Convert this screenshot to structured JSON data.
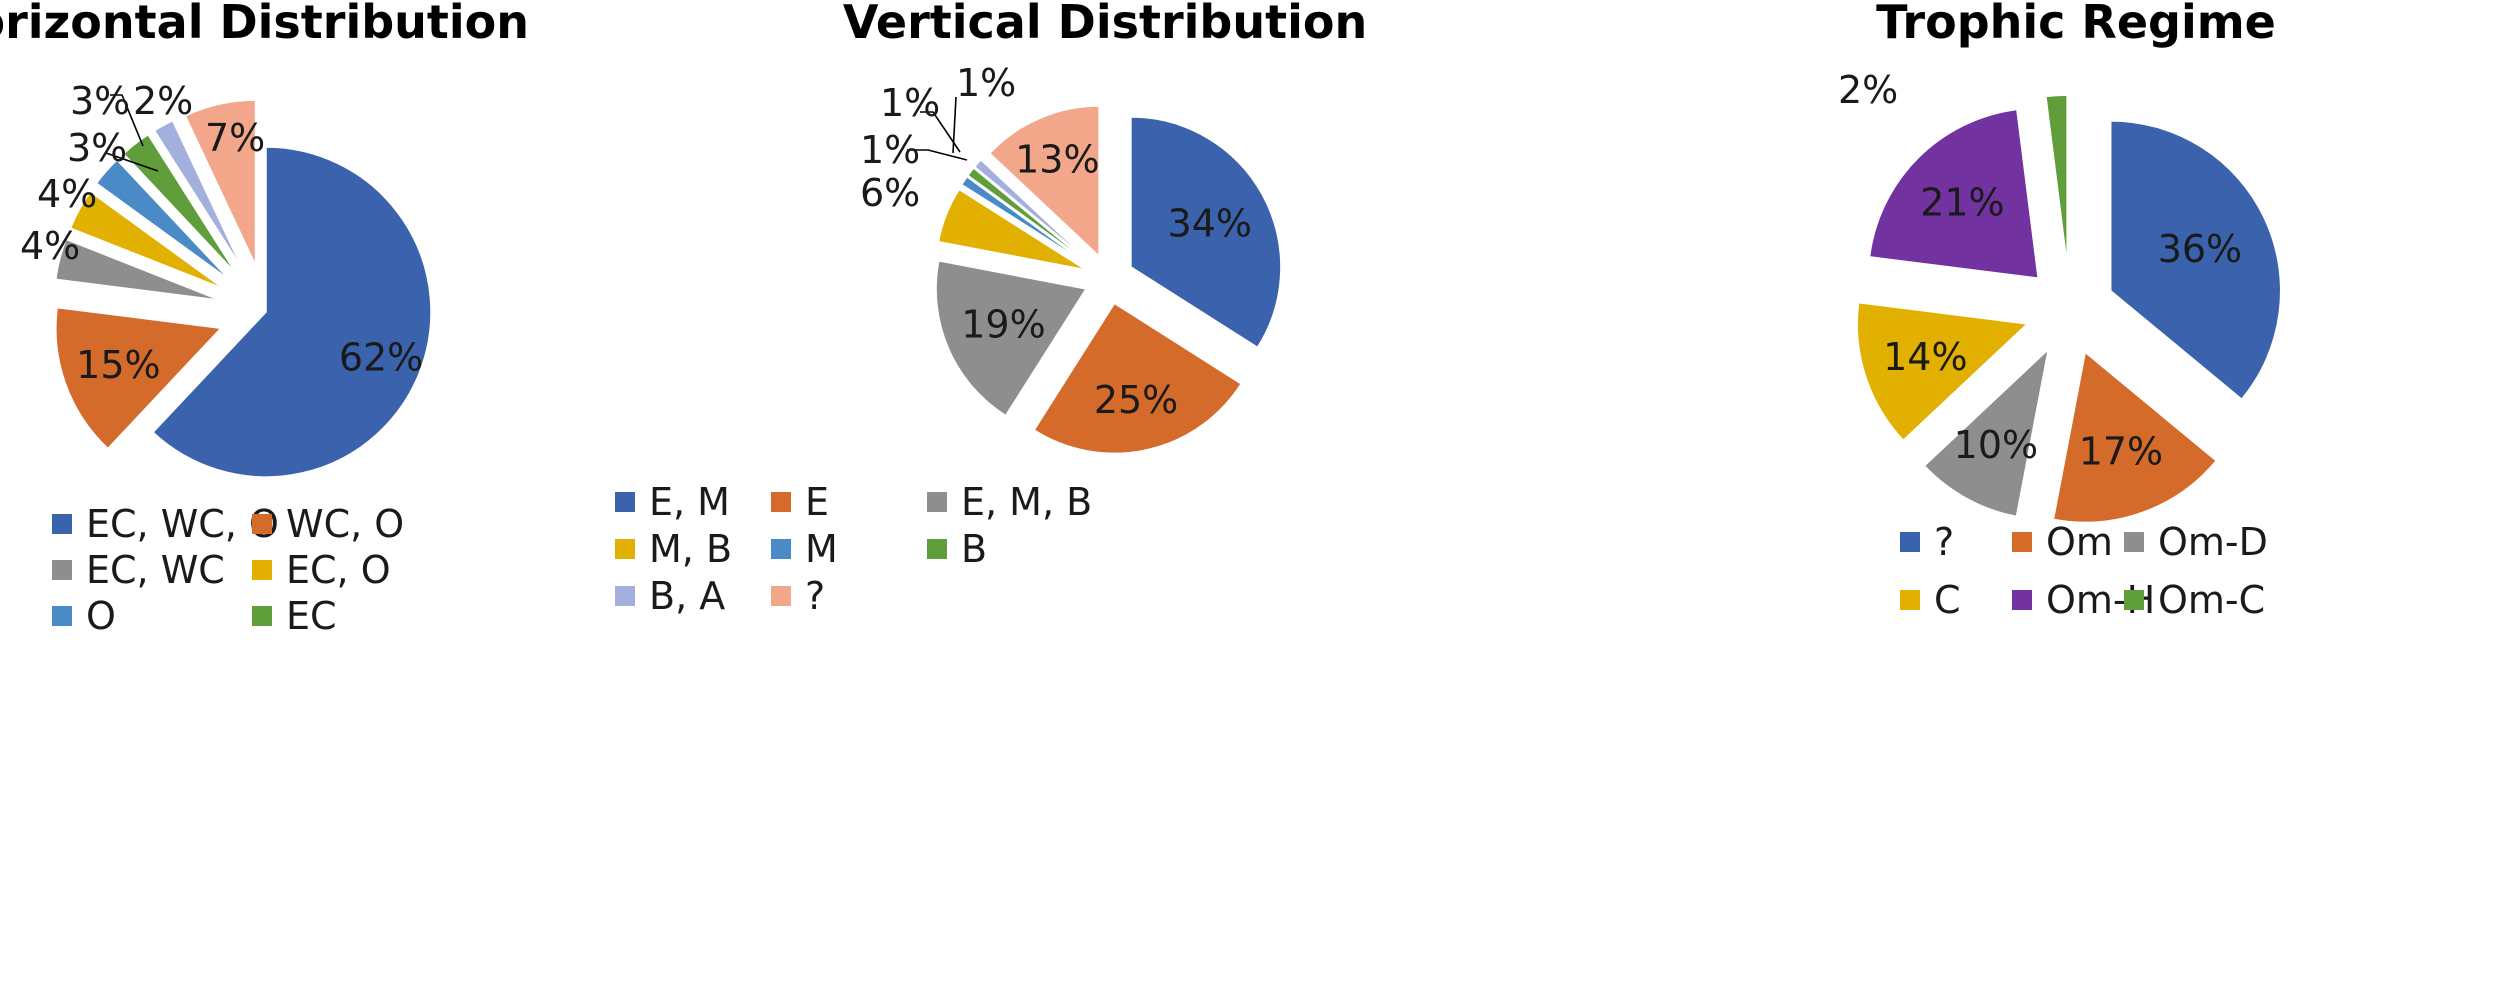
{
  "chart_data": [
    {
      "type": "pie",
      "title": "Horizontal Distribution",
      "categories": [
        "EC, WC, O",
        "WC, O",
        "EC, WC",
        "EC, O",
        "O",
        "EC",
        "",
        ""
      ],
      "values": [
        62,
        15,
        4,
        4,
        3,
        3,
        2,
        7
      ],
      "labels": [
        "62%",
        "15%",
        "4%",
        "4%",
        "3%",
        "3%",
        "2%",
        "7%"
      ],
      "colors": [
        "#3a62ad",
        "#d46b2a",
        "#8e8e8e",
        "#e1b000",
        "#4a8bc7",
        "#5f9e3b",
        "#a3afdc",
        "#f2a78b"
      ],
      "legend": [
        "EC, WC, O",
        "WC, O",
        "EC, WC",
        "EC, O",
        "O",
        "EC"
      ],
      "legend_placement": "bottom"
    },
    {
      "type": "pie",
      "title": "Vertical Distribution",
      "categories": [
        "E, M",
        "E",
        "E, M, B",
        "M, B",
        "M",
        "B",
        "B, A",
        "?"
      ],
      "values": [
        34,
        25,
        19,
        6,
        1,
        1,
        1,
        13
      ],
      "labels": [
        "34%",
        "25%",
        "19%",
        "6%",
        "1%",
        "1%",
        "1%",
        "13%"
      ],
      "colors": [
        "#3a62ad",
        "#d46b2a",
        "#8e8e8e",
        "#e1b000",
        "#4a8bc7",
        "#5f9e3b",
        "#a3afdc",
        "#f2a78b"
      ],
      "legend": [
        "E, M",
        "E",
        "E, M, B",
        "M, B",
        "M",
        "B",
        "B, A",
        "?"
      ],
      "legend_placement": "bottom"
    },
    {
      "type": "pie",
      "title": "Trophic Regime",
      "categories": [
        "?",
        "Om",
        "Om-D",
        "C",
        "Om-H",
        "Om-C"
      ],
      "values": [
        36,
        17,
        10,
        14,
        21,
        2
      ],
      "labels": [
        "36%",
        "17%",
        "10%",
        "14%",
        "21%",
        "2%"
      ],
      "colors": [
        "#3a62ad",
        "#d46b2a",
        "#8e8e8e",
        "#e1b000",
        "#7232a0",
        "#5f9e3b"
      ],
      "legend": [
        "?",
        "Om",
        "Om-D",
        "C",
        "Om-H",
        "Om-C"
      ],
      "legend_placement": "bottom"
    }
  ]
}
